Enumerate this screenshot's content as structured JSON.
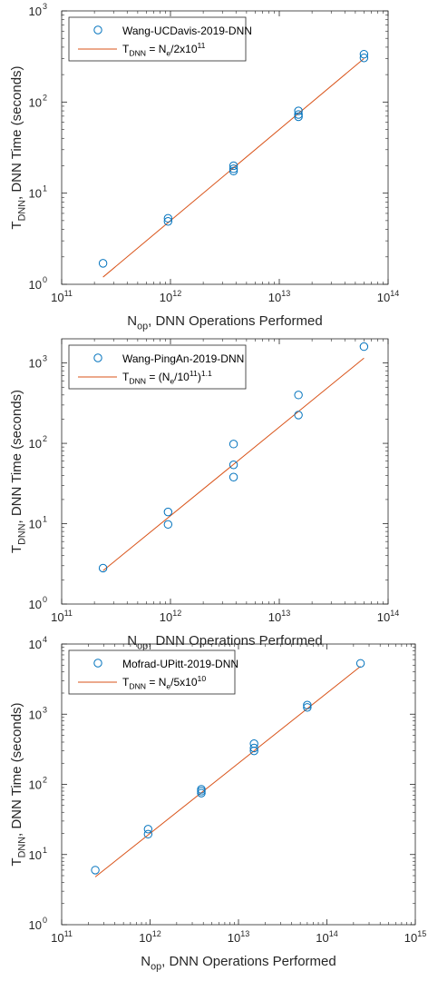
{
  "colors": {
    "marker": "#0072BD",
    "fit": "#D95319",
    "axis": "#262626",
    "legend_border": "#262626"
  },
  "chart_data": [
    {
      "type": "scatter",
      "x_scale": "log",
      "y_scale": "log",
      "xlim": [
        100000000000.0,
        100000000000000.0
      ],
      "ylim": [
        1,
        1000
      ],
      "grid": false,
      "legend_position": "top-left",
      "x_ticks": [
        {
          "mant": "10",
          "exp": "11"
        },
        {
          "mant": "10",
          "exp": "12"
        },
        {
          "mant": "10",
          "exp": "13"
        },
        {
          "mant": "10",
          "exp": "14"
        }
      ],
      "y_ticks": [
        {
          "mant": "10",
          "exp": "0"
        },
        {
          "mant": "10",
          "exp": "1"
        },
        {
          "mant": "10",
          "exp": "2"
        },
        {
          "mant": "10",
          "exp": "3"
        }
      ],
      "xlabel": {
        "main": "N",
        "sub": "op",
        "rest": ", DNN Operations Performed"
      },
      "ylabel": {
        "main": "T",
        "sub": "DNN",
        "rest": ", DNN Time (seconds)"
      },
      "series": [
        {
          "name": "Wang-UCDavis-2019-DNN",
          "kind": "points",
          "points": [
            [
              240000000000.0,
              1.7
            ],
            [
              950000000000.0,
              5.3
            ],
            [
              950000000000.0,
              4.9
            ],
            [
              3800000000000.0,
              20
            ],
            [
              3800000000000.0,
              18.5
            ],
            [
              3800000000000.0,
              17.5
            ],
            [
              15000000000000.0,
              80
            ],
            [
              15000000000000.0,
              73
            ],
            [
              15000000000000.0,
              69
            ],
            [
              60000000000000.0,
              335
            ],
            [
              60000000000000.0,
              305
            ]
          ]
        },
        {
          "kind": "line",
          "legend_label": {
            "main": "T",
            "sub": "DNN",
            "mid": " = N",
            "sub2": "e",
            "tail": "/2x10",
            "sup": "11"
          },
          "points": [
            [
              240000000000.0,
              1.2
            ],
            [
              60000000000000.0,
              300
            ]
          ]
        }
      ]
    },
    {
      "type": "scatter",
      "x_scale": "log",
      "y_scale": "log",
      "xlim": [
        100000000000.0,
        100000000000000.0
      ],
      "ylim": [
        1,
        2000
      ],
      "grid": false,
      "legend_position": "top-left",
      "x_ticks": [
        {
          "mant": "10",
          "exp": "11"
        },
        {
          "mant": "10",
          "exp": "12"
        },
        {
          "mant": "10",
          "exp": "13"
        },
        {
          "mant": "10",
          "exp": "14"
        }
      ],
      "y_ticks": [
        {
          "mant": "10",
          "exp": "0"
        },
        {
          "mant": "10",
          "exp": "1"
        },
        {
          "mant": "10",
          "exp": "2"
        },
        {
          "mant": "10",
          "exp": "3"
        }
      ],
      "xlabel": {
        "main": "N",
        "sub": "op",
        "rest": ", DNN Operations Performed"
      },
      "ylabel": {
        "main": "T",
        "sub": "DNN",
        "rest": ", DNN Time (seconds)"
      },
      "series": [
        {
          "name": "Wang-PingAn-2019-DNN",
          "kind": "points",
          "points": [
            [
              240000000000.0,
              2.8
            ],
            [
              950000000000.0,
              14
            ],
            [
              950000000000.0,
              9.8
            ],
            [
              3800000000000.0,
              98
            ],
            [
              3800000000000.0,
              54
            ],
            [
              3800000000000.0,
              38
            ],
            [
              15000000000000.0,
              400
            ],
            [
              15000000000000.0,
              225
            ],
            [
              60000000000000.0,
              1600
            ]
          ]
        },
        {
          "kind": "line",
          "legend_label": {
            "main": "T",
            "sub": "DNN",
            "mid": " = (N",
            "sub2": "e",
            "tail": "/10",
            "sup": "11",
            "tail2": ")",
            "sup2": "1.1"
          },
          "points": [
            [
              240000000000.0,
              2.6
            ],
            [
              60000000000000.0,
              1150
            ]
          ]
        }
      ]
    },
    {
      "type": "scatter",
      "x_scale": "log",
      "y_scale": "log",
      "xlim": [
        100000000000.0,
        1000000000000000.0
      ],
      "ylim": [
        1,
        10000
      ],
      "grid": false,
      "legend_position": "top-left",
      "x_ticks": [
        {
          "mant": "10",
          "exp": "11"
        },
        {
          "mant": "10",
          "exp": "12"
        },
        {
          "mant": "10",
          "exp": "13"
        },
        {
          "mant": "10",
          "exp": "14"
        },
        {
          "mant": "10",
          "exp": "15"
        }
      ],
      "y_ticks": [
        {
          "mant": "10",
          "exp": "0"
        },
        {
          "mant": "10",
          "exp": "1"
        },
        {
          "mant": "10",
          "exp": "2"
        },
        {
          "mant": "10",
          "exp": "3"
        },
        {
          "mant": "10",
          "exp": "4"
        }
      ],
      "xlabel": {
        "main": "N",
        "sub": "op",
        "rest": ", DNN Operations Performed"
      },
      "ylabel": {
        "main": "T",
        "sub": "DNN",
        "rest": ", DNN Time (seconds)"
      },
      "series": [
        {
          "name": "Mofrad-UPitt-2019-DNN",
          "kind": "points",
          "points": [
            [
              240000000000.0,
              6
            ],
            [
              950000000000.0,
              23
            ],
            [
              950000000000.0,
              19.5
            ],
            [
              3800000000000.0,
              85
            ],
            [
              3800000000000.0,
              80
            ],
            [
              3800000000000.0,
              75
            ],
            [
              15000000000000.0,
              380
            ],
            [
              15000000000000.0,
              330
            ],
            [
              15000000000000.0,
              300
            ],
            [
              60000000000000.0,
              1350
            ],
            [
              60000000000000.0,
              1250
            ],
            [
              240000000000000.0,
              5300
            ]
          ]
        },
        {
          "kind": "line",
          "legend_label": {
            "main": "T",
            "sub": "DNN",
            "mid": " = N",
            "sub2": "e",
            "tail": "/5x10",
            "sup": "10"
          },
          "points": [
            [
              240000000000.0,
              4.8
            ],
            [
              240000000000000.0,
              4800
            ]
          ]
        }
      ]
    }
  ]
}
